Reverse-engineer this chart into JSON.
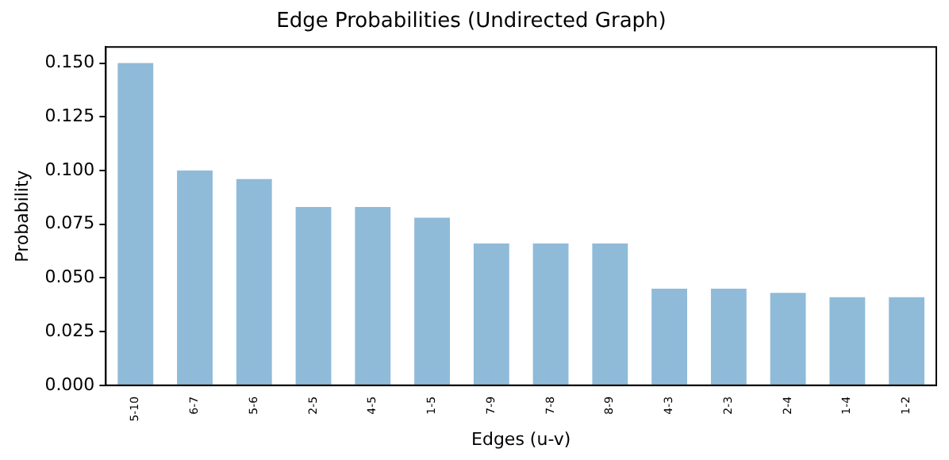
{
  "chart_data": {
    "type": "bar",
    "title": "Edge Probabilities (Undirected Graph)",
    "xlabel": "Edges (u-v)",
    "ylabel": "Probability",
    "categories": [
      "5-10",
      "6-7",
      "5-6",
      "2-5",
      "4-5",
      "1-5",
      "7-9",
      "7-8",
      "8-9",
      "4-3",
      "2-3",
      "2-4",
      "1-4",
      "1-2"
    ],
    "values": [
      0.15,
      0.1,
      0.096,
      0.083,
      0.083,
      0.078,
      0.066,
      0.066,
      0.066,
      0.045,
      0.045,
      0.043,
      0.041,
      0.041
    ],
    "color": "#8fbbd9",
    "ylim": [
      0,
      0.1575
    ],
    "yticks": [
      {
        "value": 0,
        "label": "0.000"
      },
      {
        "value": 0.025,
        "label": "0.025"
      },
      {
        "value": 0.05,
        "label": "0.050"
      },
      {
        "value": 0.075,
        "label": "0.075"
      },
      {
        "value": 0.1,
        "label": "0.100"
      },
      {
        "value": 0.125,
        "label": "0.125"
      },
      {
        "value": 0.15,
        "label": "0.150"
      }
    ],
    "grid": false,
    "legend": false
  }
}
